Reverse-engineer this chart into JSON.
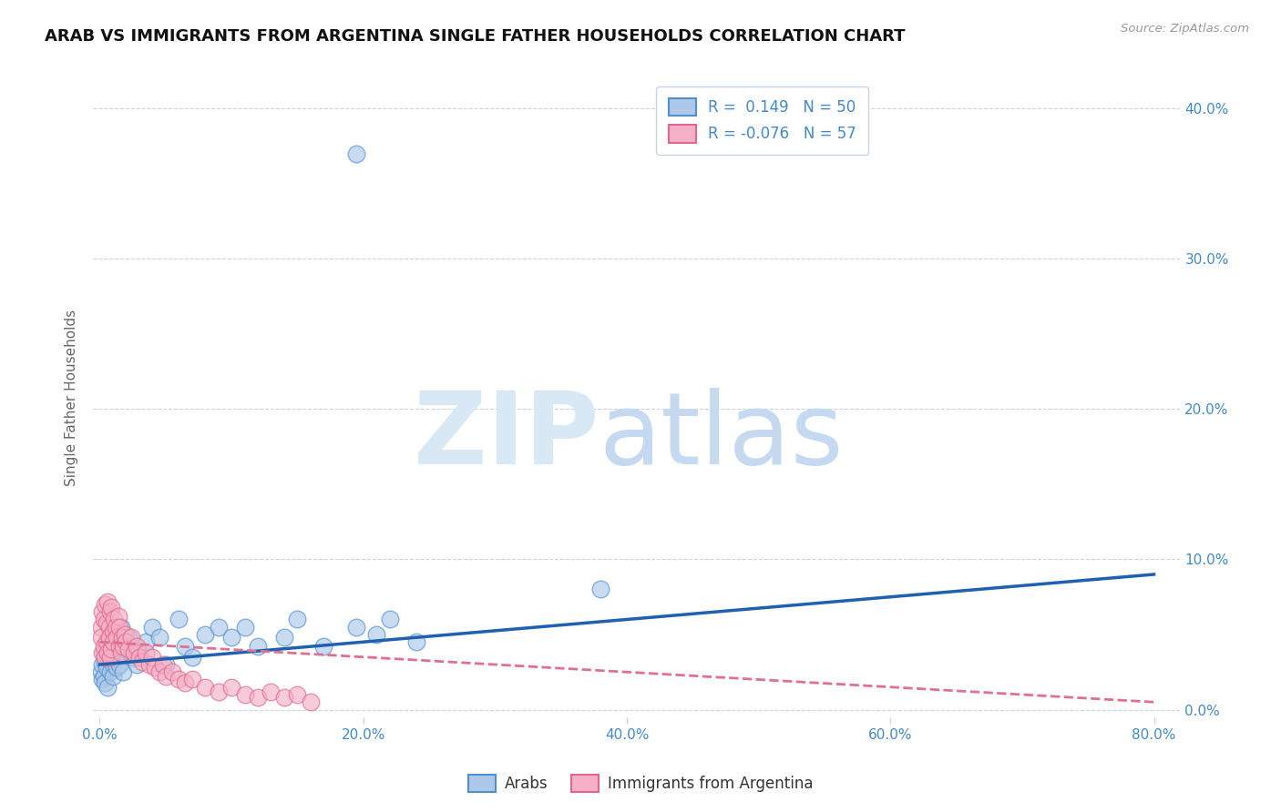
{
  "title": "ARAB VS IMMIGRANTS FROM ARGENTINA SINGLE FATHER HOUSEHOLDS CORRELATION CHART",
  "source": "Source: ZipAtlas.com",
  "ylabel_label": "Single Father Households",
  "xlim": [
    -0.005,
    0.82
  ],
  "ylim": [
    -0.005,
    0.42
  ],
  "yticks": [
    0.0,
    0.1,
    0.2,
    0.3,
    0.4
  ],
  "xticks": [
    0.0,
    0.2,
    0.4,
    0.6,
    0.8
  ],
  "arab_color": "#adc8e8",
  "arg_color": "#f5b0c8",
  "arab_edge_color": "#5090d0",
  "arg_edge_color": "#e06888",
  "arab_line_color": "#2060b0",
  "arg_line_color": "#e07090",
  "tick_color": "#4488cc",
  "watermark_zip_color": "#d8e8f5",
  "watermark_atlas_color": "#c5daf0",
  "arab_x": [
    0.001,
    0.002,
    0.002,
    0.003,
    0.003,
    0.004,
    0.004,
    0.005,
    0.005,
    0.006,
    0.006,
    0.007,
    0.008,
    0.009,
    0.01,
    0.01,
    0.011,
    0.012,
    0.013,
    0.014,
    0.015,
    0.016,
    0.017,
    0.018,
    0.02,
    0.022,
    0.025,
    0.028,
    0.03,
    0.035,
    0.04,
    0.045,
    0.05,
    0.06,
    0.065,
    0.07,
    0.08,
    0.09,
    0.1,
    0.11,
    0.12,
    0.14,
    0.15,
    0.17,
    0.195,
    0.21,
    0.22,
    0.24,
    0.38,
    0.195
  ],
  "arab_y": [
    0.025,
    0.03,
    0.02,
    0.038,
    0.022,
    0.032,
    0.018,
    0.042,
    0.028,
    0.035,
    0.015,
    0.048,
    0.025,
    0.038,
    0.03,
    0.022,
    0.045,
    0.035,
    0.028,
    0.04,
    0.03,
    0.055,
    0.038,
    0.025,
    0.042,
    0.048,
    0.035,
    0.03,
    0.038,
    0.045,
    0.055,
    0.048,
    0.03,
    0.06,
    0.042,
    0.035,
    0.05,
    0.055,
    0.048,
    0.055,
    0.042,
    0.048,
    0.06,
    0.042,
    0.055,
    0.05,
    0.06,
    0.045,
    0.08,
    0.37
  ],
  "arg_x": [
    0.001,
    0.001,
    0.002,
    0.002,
    0.003,
    0.003,
    0.004,
    0.004,
    0.005,
    0.005,
    0.006,
    0.006,
    0.007,
    0.007,
    0.008,
    0.008,
    0.009,
    0.009,
    0.01,
    0.01,
    0.011,
    0.012,
    0.013,
    0.014,
    0.015,
    0.015,
    0.016,
    0.017,
    0.018,
    0.019,
    0.02,
    0.022,
    0.024,
    0.026,
    0.028,
    0.03,
    0.032,
    0.035,
    0.038,
    0.04,
    0.042,
    0.045,
    0.048,
    0.05,
    0.055,
    0.06,
    0.065,
    0.07,
    0.08,
    0.09,
    0.1,
    0.11,
    0.12,
    0.13,
    0.14,
    0.15,
    0.16
  ],
  "arg_y": [
    0.055,
    0.048,
    0.065,
    0.038,
    0.06,
    0.042,
    0.07,
    0.035,
    0.058,
    0.045,
    0.072,
    0.038,
    0.055,
    0.048,
    0.065,
    0.035,
    0.068,
    0.04,
    0.052,
    0.045,
    0.06,
    0.055,
    0.048,
    0.062,
    0.042,
    0.055,
    0.038,
    0.048,
    0.042,
    0.05,
    0.045,
    0.04,
    0.048,
    0.038,
    0.042,
    0.035,
    0.032,
    0.038,
    0.03,
    0.035,
    0.028,
    0.025,
    0.03,
    0.022,
    0.025,
    0.02,
    0.018,
    0.02,
    0.015,
    0.012,
    0.015,
    0.01,
    0.008,
    0.012,
    0.008,
    0.01,
    0.005
  ],
  "arab_trend_x": [
    0.0,
    0.8
  ],
  "arab_trend_y_start": 0.03,
  "arab_trend_y_end": 0.09,
  "arg_trend_x": [
    0.0,
    0.8
  ],
  "arg_trend_y_start": 0.045,
  "arg_trend_y_end": 0.005
}
